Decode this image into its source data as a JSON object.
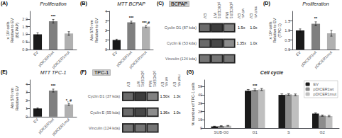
{
  "chart_data": [
    {
      "type": "bar",
      "title": "Proliferation",
      "annotations": [
        "(A)"
      ],
      "categories": [
        "EV",
        "pDICER1wt",
        "pDICER1mut"
      ],
      "values": [
        1.0,
        1.85,
        1.05
      ],
      "errors": [
        0.1,
        0.12,
        0.12
      ],
      "significance": [
        null,
        "***",
        null
      ],
      "colors": [
        "#1a1a1a",
        "#7f7f7f",
        "#b0b0b0"
      ],
      "ylabel": "x 10² cells\nRelative to EV\n(BCPAP)",
      "ylim": [
        0,
        2.5
      ],
      "yticks": [
        {
          "value": 0,
          "label": "0.0"
        },
        0.5,
        {
          "value": 1,
          "label": "1.0"
        },
        1.5,
        {
          "value": 2,
          "label": "2.0"
        }
      ],
      "grid": false
    },
    {
      "type": "bar",
      "title": "MTT BCPAP",
      "annotations": [
        "(B)"
      ],
      "categories": [
        "EV",
        "pDICER1wt",
        "pDICER1mut"
      ],
      "values": [
        1.0,
        2.85,
        2.4
      ],
      "errors": [
        0.08,
        0.12,
        0.1
      ],
      "significance": [
        null,
        "***",
        "***,#"
      ],
      "colors": [
        "#1a1a1a",
        "#7f7f7f",
        "#b0b0b0"
      ],
      "ylabel": "Abs 570 nm\nRelative to EV",
      "ylim": [
        0,
        4.0
      ],
      "yticks": [
        0,
        1,
        2,
        3,
        4
      ],
      "grid": false
    },
    {
      "type": "heatmap",
      "title": "BCPAP",
      "annotations": [
        "(C)"
      ],
      "categories": [
        "EV",
        "pDICER1\nWT",
        "pDICER1\nMut"
      ],
      "rows": [
        "Cyclin D1 (87 kda)",
        "Cyclin E (53 kda)",
        "Vinculin (124 kda)"
      ],
      "cells": [
        [
          0.65,
          0.85,
          0.55
        ],
        [
          0.65,
          0.8,
          0.5
        ],
        [
          0.6,
          0.6,
          0.6
        ]
      ],
      "densitometry_headers": [
        "wt vs.\nEV",
        "mut vs.\nEV"
      ],
      "densitometry": [
        [
          "1.5x",
          "1.0x"
        ],
        [
          "1.35x",
          "1.0x"
        ],
        [
          null,
          null
        ]
      ]
    },
    {
      "type": "bar",
      "title": "Proliferation",
      "annotations": [
        "(D)"
      ],
      "categories": [
        "EV",
        "pDICER1wt",
        "pDICER1mut"
      ],
      "values": [
        1.0,
        1.35,
        0.85
      ],
      "errors": [
        0.08,
        0.1,
        0.15
      ],
      "significance": [
        null,
        "**",
        null
      ],
      "colors": [
        "#1a1a1a",
        "#7f7f7f",
        "#b0b0b0"
      ],
      "ylabel": "x 10² cells\nRelative to EV\n(TPC-1)",
      "ylim": [
        0,
        2.0
      ],
      "yticks": [
        {
          "value": 0,
          "label": "0.0"
        },
        0.5,
        {
          "value": 1,
          "label": "1.0"
        },
        1.5
      ],
      "grid": false
    },
    {
      "type": "bar",
      "title": "MTT TPC-1",
      "annotations": [
        "(E)"
      ],
      "categories": [
        "EV",
        "pDICER1wt",
        "pDICER1mut"
      ],
      "values": [
        1.0,
        3.2,
        1.5
      ],
      "errors": [
        0.08,
        0.18,
        0.12
      ],
      "significance": [
        null,
        "***",
        "*, #"
      ],
      "colors": [
        "#1a1a1a",
        "#7f7f7f",
        "#b0b0b0"
      ],
      "ylabel": "Abs 570 nm\nRelative to EV",
      "ylim": [
        0,
        4.5
      ],
      "yticks": [
        0,
        1,
        2,
        3,
        4
      ],
      "grid": false
    },
    {
      "type": "heatmap",
      "title": "TPC-1",
      "annotations": [
        "(F)"
      ],
      "categories": [
        "EV",
        "pDICER1\nWT",
        "pDICER1\nMut"
      ],
      "rows": [
        "Cyclin D1 (37 kda)",
        "Cyclin E (55 kda)",
        "Vinculin (124 kda)"
      ],
      "cells": [
        [
          0.65,
          0.85,
          0.55
        ],
        [
          0.65,
          0.8,
          0.5
        ],
        [
          0.6,
          0.6,
          0.6
        ]
      ],
      "densitometry_headers": [
        "wt vs.\nEV",
        "mut vs.\nEV"
      ],
      "densitometry": [
        [
          "1.50x",
          "1.3x"
        ],
        [
          "1.36x",
          "1.0x"
        ],
        [
          null,
          null
        ]
      ]
    },
    {
      "type": "bar",
      "title": "Cell cycle",
      "annotations": [
        "(G)"
      ],
      "categories": [
        "SUB-G0",
        "G1",
        "S",
        "G2"
      ],
      "series": [
        {
          "name": "EV",
          "color": "#1a1a1a",
          "values": [
            2.0,
            45.0,
            40.0,
            17.5
          ],
          "errors": [
            0.3,
            1.5,
            1.2,
            0.8
          ]
        },
        {
          "name": "pDICER1wt",
          "color": "#8c8c8c",
          "values": [
            2.5,
            46.0,
            40.5,
            15.0
          ],
          "errors": [
            0.4,
            1.2,
            1.0,
            0.7
          ],
          "significance": [
            null,
            "***",
            null,
            null
          ]
        },
        {
          "name": "pDICER1mut",
          "color": "#bfbfbf",
          "values": [
            2.8,
            46.5,
            40.0,
            14.5
          ],
          "errors": [
            0.4,
            1.3,
            1.1,
            0.8
          ]
        }
      ],
      "ylabel": "% number of TPC-1 cells",
      "ylim": [
        0,
        58
      ],
      "yticks": [
        0,
        10,
        20,
        30,
        40,
        50
      ],
      "grid": false,
      "legend": "upper right"
    }
  ]
}
